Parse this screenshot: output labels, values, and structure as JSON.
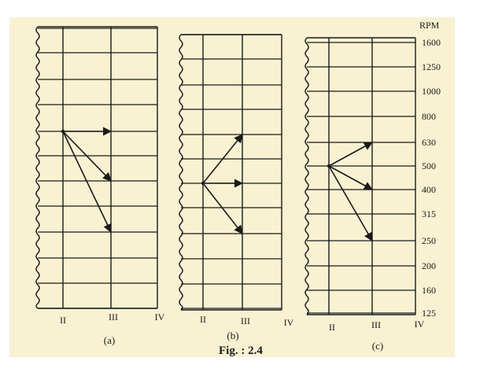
{
  "colors": {
    "paper": "#f8f1d2",
    "ink": "#1a1a1a"
  },
  "rpm_header": "RPM",
  "speeds": [
    "1600",
    "1250",
    "1000",
    "800",
    "630",
    "500",
    "400",
    "315",
    "250",
    "200",
    "160",
    "125"
  ],
  "shaft_labels": [
    "II",
    "III",
    "IV"
  ],
  "figure_caption": "Fig. : 2.4",
  "panels": [
    {
      "id": "a",
      "caption": "(a)",
      "rays": [
        {
          "from": {
            "shaft": "II",
            "rpm": 630
          },
          "to": {
            "shaft": "III",
            "rpm": 630
          }
        },
        {
          "from": {
            "shaft": "II",
            "rpm": 630
          },
          "to": {
            "shaft": "III",
            "rpm": 400
          }
        },
        {
          "from": {
            "shaft": "II",
            "rpm": 630
          },
          "to": {
            "shaft": "III",
            "rpm": 250
          }
        }
      ]
    },
    {
      "id": "b",
      "caption": "(b)",
      "rays": [
        {
          "from": {
            "shaft": "II",
            "rpm": 400
          },
          "to": {
            "shaft": "III",
            "rpm": 630
          }
        },
        {
          "from": {
            "shaft": "II",
            "rpm": 400
          },
          "to": {
            "shaft": "III",
            "rpm": 400
          }
        },
        {
          "from": {
            "shaft": "II",
            "rpm": 400
          },
          "to": {
            "shaft": "III",
            "rpm": 250
          }
        }
      ]
    },
    {
      "id": "c",
      "caption": "(c)",
      "rays": [
        {
          "from": {
            "shaft": "II",
            "rpm": 500
          },
          "to": {
            "shaft": "III",
            "rpm": 630
          }
        },
        {
          "from": {
            "shaft": "II",
            "rpm": 500
          },
          "to": {
            "shaft": "III",
            "rpm": 400
          }
        },
        {
          "from": {
            "shaft": "II",
            "rpm": 500
          },
          "to": {
            "shaft": "III",
            "rpm": 250
          }
        }
      ]
    }
  ]
}
